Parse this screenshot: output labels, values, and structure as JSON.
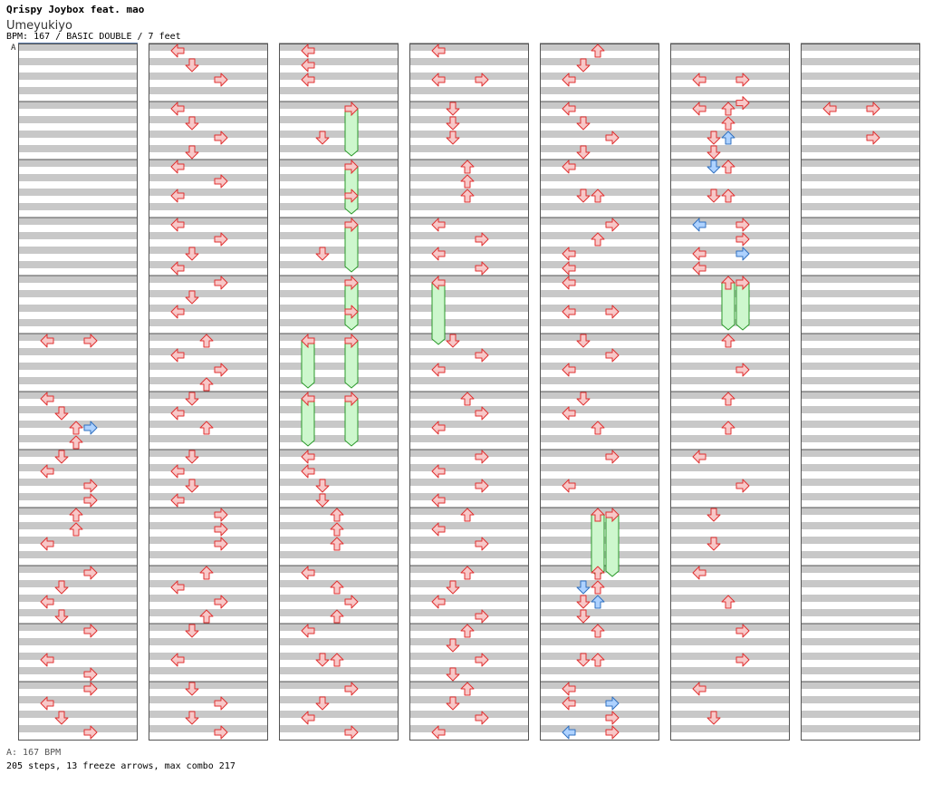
{
  "header": {
    "title": "Qrispy Joybox feat. mao",
    "song": "Umeyukiyo",
    "info": "BPM: 167 / BASIC DOUBLE / 7 feet",
    "marker": "A"
  },
  "footer": {
    "bpm_note": "A: 167 BPM",
    "summary": "205 steps, 13 freeze arrows, max combo 217"
  },
  "chart_data": {
    "type": "step-chart",
    "panels": [
      "left",
      "down",
      "up",
      "right"
    ],
    "columns": 7,
    "measures_per_column": 12,
    "colors": {
      "note": "#f7c8c8",
      "note_edge": "#e03030",
      "shock": "#aed2ff",
      "shock_edge": "#3070c0",
      "freeze": "#cdf7cd",
      "freeze_edge": "#2a9a2a",
      "stripe": "#c8c8c8"
    },
    "notes": [
      [
        6,
        0,
        1,
        "left"
      ],
      [
        6,
        1,
        0,
        "right"
      ],
      [
        6,
        1,
        0.5,
        "right"
      ],
      [
        5,
        0,
        1,
        "left"
      ],
      [
        5,
        0,
        0.5,
        "left"
      ],
      [
        5,
        0,
        0.5,
        "right"
      ],
      [
        5,
        0,
        0.9,
        "right"
      ],
      [
        5,
        1,
        1,
        "down",
        "shock"
      ],
      [
        5,
        1,
        0.5,
        "down"
      ],
      [
        5,
        1,
        0.5,
        "up",
        "shock"
      ],
      [
        5,
        1,
        0,
        "up"
      ],
      [
        5,
        1,
        0.25,
        "up"
      ],
      [
        5,
        1,
        0.75,
        "down"
      ],
      [
        5,
        2,
        0,
        "up"
      ],
      [
        5,
        2,
        0.5,
        "down"
      ],
      [
        5,
        2,
        0.5,
        "up"
      ],
      [
        5,
        3,
        0,
        "right"
      ],
      [
        5,
        3,
        0.25,
        "right"
      ],
      [
        5,
        3,
        0.5,
        "right",
        "shock"
      ],
      [
        5,
        3,
        0.5,
        "left"
      ],
      [
        5,
        3,
        0,
        "left",
        "shock"
      ],
      [
        5,
        3,
        0.75,
        "left"
      ],
      [
        5,
        5,
        0,
        "up"
      ],
      [
        5,
        5,
        0.5,
        "right"
      ],
      [
        5,
        6,
        0,
        "up"
      ],
      [
        5,
        6,
        0.5,
        "up"
      ],
      [
        5,
        7,
        0,
        "left"
      ],
      [
        5,
        7,
        0.5,
        "right"
      ],
      [
        5,
        8,
        0,
        "down"
      ],
      [
        5,
        8,
        0.5,
        "down"
      ],
      [
        5,
        9,
        0,
        "left"
      ],
      [
        5,
        9,
        0.5,
        "up"
      ],
      [
        5,
        10,
        0,
        "right"
      ],
      [
        5,
        10,
        0.5,
        "right"
      ],
      [
        5,
        11,
        0,
        "left"
      ],
      [
        5,
        11,
        0.5,
        "down"
      ],
      [
        4,
        0,
        0,
        "up"
      ],
      [
        4,
        0,
        0.25,
        "down"
      ],
      [
        4,
        0,
        0.5,
        "left"
      ],
      [
        4,
        1,
        0,
        "left"
      ],
      [
        4,
        1,
        0.25,
        "down"
      ],
      [
        4,
        1,
        0.5,
        "right"
      ],
      [
        4,
        1,
        0.75,
        "down"
      ],
      [
        4,
        2,
        0,
        "left"
      ],
      [
        4,
        2,
        0.5,
        "down"
      ],
      [
        4,
        2,
        0.5,
        "up"
      ],
      [
        4,
        3,
        0,
        "right"
      ],
      [
        4,
        3,
        0.25,
        "up"
      ],
      [
        4,
        3,
        0.5,
        "left"
      ],
      [
        4,
        3,
        0.75,
        "left"
      ],
      [
        4,
        4,
        0,
        "left"
      ],
      [
        4,
        4,
        0.5,
        "left"
      ],
      [
        4,
        4,
        0.5,
        "right"
      ],
      [
        4,
        5,
        0,
        "down"
      ],
      [
        4,
        5,
        0.25,
        "right"
      ],
      [
        4,
        5,
        0.5,
        "left"
      ],
      [
        4,
        6,
        0,
        "down"
      ],
      [
        4,
        6,
        0.25,
        "left"
      ],
      [
        4,
        6,
        0.5,
        "up"
      ],
      [
        4,
        7,
        0,
        "right"
      ],
      [
        4,
        7,
        0.5,
        "left"
      ],
      [
        4,
        9,
        0,
        "up"
      ],
      [
        4,
        9,
        0.25,
        "down",
        "shock"
      ],
      [
        4,
        9,
        0.25,
        "up"
      ],
      [
        4,
        9,
        0.5,
        "down"
      ],
      [
        4,
        9,
        0.5,
        "up",
        "shock"
      ],
      [
        4,
        9,
        0.75,
        "down"
      ],
      [
        4,
        10,
        0,
        "up"
      ],
      [
        4,
        10,
        0.5,
        "down"
      ],
      [
        4,
        10,
        0.5,
        "up"
      ],
      [
        4,
        11,
        0,
        "left"
      ],
      [
        4,
        11,
        0.25,
        "right",
        "shock"
      ],
      [
        4,
        11,
        0.25,
        "left"
      ],
      [
        4,
        11,
        0.5,
        "right"
      ],
      [
        4,
        11,
        0.75,
        "right"
      ],
      [
        4,
        11,
        0.75,
        "left",
        "shock"
      ],
      [
        3,
        0,
        0,
        "left"
      ],
      [
        3,
        0,
        0.5,
        "right"
      ],
      [
        3,
        0,
        0.5,
        "left"
      ],
      [
        3,
        1,
        0,
        "down"
      ],
      [
        3,
        1,
        0.25,
        "down"
      ],
      [
        3,
        1,
        0.5,
        "down"
      ],
      [
        3,
        2,
        0,
        "up"
      ],
      [
        3,
        2,
        0.25,
        "up"
      ],
      [
        3,
        2,
        0.5,
        "up"
      ],
      [
        3,
        3,
        0,
        "left"
      ],
      [
        3,
        3,
        0.25,
        "right"
      ],
      [
        3,
        3,
        0.5,
        "left"
      ],
      [
        3,
        3,
        0.75,
        "right"
      ],
      [
        3,
        5,
        0,
        "down"
      ],
      [
        3,
        5,
        0.25,
        "right"
      ],
      [
        3,
        5,
        0.5,
        "left"
      ],
      [
        3,
        6,
        0,
        "up"
      ],
      [
        3,
        6,
        0.25,
        "right"
      ],
      [
        3,
        6,
        0.5,
        "left"
      ],
      [
        3,
        7,
        0,
        "right"
      ],
      [
        3,
        7,
        0.25,
        "left"
      ],
      [
        3,
        7,
        0.5,
        "right"
      ],
      [
        3,
        7,
        0.75,
        "left"
      ],
      [
        3,
        8,
        0,
        "up"
      ],
      [
        3,
        8,
        0.25,
        "left"
      ],
      [
        3,
        8,
        0.5,
        "right"
      ],
      [
        3,
        9,
        0,
        "up"
      ],
      [
        3,
        9,
        0.25,
        "down"
      ],
      [
        3,
        9,
        0.5,
        "left"
      ],
      [
        3,
        9,
        0.75,
        "right"
      ],
      [
        3,
        10,
        0,
        "up"
      ],
      [
        3,
        10,
        0.25,
        "down"
      ],
      [
        3,
        10,
        0.5,
        "right"
      ],
      [
        3,
        10,
        0.75,
        "down"
      ],
      [
        3,
        11,
        0,
        "up"
      ],
      [
        3,
        11,
        0.25,
        "down"
      ],
      [
        3,
        11,
        0.5,
        "right"
      ],
      [
        3,
        11,
        0.75,
        "left"
      ],
      [
        2,
        0,
        0,
        "left"
      ],
      [
        2,
        0,
        0.25,
        "left"
      ],
      [
        2,
        0,
        0.5,
        "left"
      ],
      [
        2,
        1,
        0.5,
        "down"
      ],
      [
        2,
        2,
        0.5,
        "right"
      ],
      [
        2,
        3,
        0.5,
        "down"
      ],
      [
        2,
        4,
        0.5,
        "right"
      ],
      [
        2,
        7,
        0,
        "left"
      ],
      [
        2,
        7,
        0.25,
        "left"
      ],
      [
        2,
        7,
        0.5,
        "down"
      ],
      [
        2,
        7,
        0.75,
        "down"
      ],
      [
        2,
        8,
        0,
        "up"
      ],
      [
        2,
        8,
        0.25,
        "up"
      ],
      [
        2,
        8,
        0.5,
        "up"
      ],
      [
        2,
        9,
        0,
        "left"
      ],
      [
        2,
        9,
        0.25,
        "up"
      ],
      [
        2,
        9,
        0.5,
        "right"
      ],
      [
        2,
        9,
        0.75,
        "up"
      ],
      [
        2,
        10,
        0,
        "left"
      ],
      [
        2,
        10,
        0.5,
        "down"
      ],
      [
        2,
        10,
        0.5,
        "up"
      ],
      [
        2,
        11,
        0,
        "right"
      ],
      [
        2,
        11,
        0.25,
        "down"
      ],
      [
        2,
        11,
        0.5,
        "left"
      ],
      [
        2,
        11,
        0.75,
        "right"
      ],
      [
        1,
        0,
        0,
        "left"
      ],
      [
        1,
        0,
        0.25,
        "down"
      ],
      [
        1,
        0,
        0.5,
        "right"
      ],
      [
        1,
        1,
        0,
        "left"
      ],
      [
        1,
        1,
        0.25,
        "down"
      ],
      [
        1,
        1,
        0.5,
        "right"
      ],
      [
        1,
        1,
        0.75,
        "down"
      ],
      [
        1,
        2,
        0,
        "left"
      ],
      [
        1,
        2,
        0.25,
        "right"
      ],
      [
        1,
        2,
        0.5,
        "left"
      ],
      [
        1,
        3,
        0,
        "left"
      ],
      [
        1,
        3,
        0.25,
        "right"
      ],
      [
        1,
        3,
        0.5,
        "down"
      ],
      [
        1,
        3,
        0.75,
        "left"
      ],
      [
        1,
        4,
        0,
        "right"
      ],
      [
        1,
        4,
        0.25,
        "down"
      ],
      [
        1,
        4,
        0.5,
        "left"
      ],
      [
        1,
        5,
        0,
        "up"
      ],
      [
        1,
        5,
        0.25,
        "left"
      ],
      [
        1,
        5,
        0.5,
        "right"
      ],
      [
        1,
        5,
        0.75,
        "up"
      ],
      [
        1,
        6,
        0,
        "down"
      ],
      [
        1,
        6,
        0.25,
        "left"
      ],
      [
        1,
        6,
        0.5,
        "up"
      ],
      [
        1,
        7,
        0,
        "down"
      ],
      [
        1,
        7,
        0.25,
        "left"
      ],
      [
        1,
        7,
        0.5,
        "down"
      ],
      [
        1,
        7,
        0.75,
        "left"
      ],
      [
        1,
        8,
        0,
        "right"
      ],
      [
        1,
        8,
        0.25,
        "right"
      ],
      [
        1,
        8,
        0.5,
        "right"
      ],
      [
        1,
        9,
        0,
        "up"
      ],
      [
        1,
        9,
        0.25,
        "left"
      ],
      [
        1,
        9,
        0.5,
        "right"
      ],
      [
        1,
        9,
        0.75,
        "up"
      ],
      [
        1,
        10,
        0,
        "down"
      ],
      [
        1,
        10,
        0.5,
        "left"
      ],
      [
        1,
        11,
        0,
        "down"
      ],
      [
        1,
        11,
        0.25,
        "right"
      ],
      [
        1,
        11,
        0.5,
        "down"
      ],
      [
        1,
        11,
        0.75,
        "right"
      ],
      [
        0,
        5,
        0,
        "left"
      ],
      [
        0,
        5,
        0,
        "right"
      ],
      [
        0,
        6,
        0,
        "left"
      ],
      [
        0,
        6,
        0.25,
        "down"
      ],
      [
        0,
        6,
        0.5,
        "up"
      ],
      [
        0,
        6,
        0.5,
        "right",
        "shock"
      ],
      [
        0,
        6,
        0.75,
        "up"
      ],
      [
        0,
        7,
        0,
        "down"
      ],
      [
        0,
        7,
        0.25,
        "left"
      ],
      [
        0,
        7,
        0.5,
        "right"
      ],
      [
        0,
        7,
        0.75,
        "right"
      ],
      [
        0,
        8,
        0,
        "up"
      ],
      [
        0,
        8,
        0.25,
        "up"
      ],
      [
        0,
        8,
        0.5,
        "left"
      ],
      [
        0,
        9,
        0,
        "right"
      ],
      [
        0,
        9,
        0.25,
        "down"
      ],
      [
        0,
        9,
        0.5,
        "left"
      ],
      [
        0,
        9,
        0.75,
        "down"
      ],
      [
        0,
        10,
        0,
        "right"
      ],
      [
        0,
        10,
        0.5,
        "left"
      ],
      [
        0,
        10,
        0.75,
        "right"
      ],
      [
        0,
        11,
        0,
        "right"
      ],
      [
        0,
        11,
        0.25,
        "left"
      ],
      [
        0,
        11,
        0.5,
        "down"
      ],
      [
        0,
        11,
        0.75,
        "right"
      ]
    ],
    "freezes": [
      [
        2,
        1,
        0,
        0.75,
        "right"
      ],
      [
        2,
        2,
        0,
        0.75,
        "right"
      ],
      [
        2,
        3,
        0,
        0.75,
        "right"
      ],
      [
        2,
        4,
        0,
        0.75,
        "right"
      ],
      [
        3,
        4,
        0,
        1,
        "left"
      ],
      [
        2,
        5,
        0,
        0.75,
        "left"
      ],
      [
        2,
        5,
        0,
        0.75,
        "right"
      ],
      [
        2,
        6,
        0,
        0.75,
        "left"
      ],
      [
        2,
        6,
        0,
        0.75,
        "right"
      ],
      [
        4,
        8,
        0,
        1,
        "up"
      ],
      [
        4,
        8,
        0,
        1,
        "right"
      ],
      [
        5,
        4,
        0,
        0.75,
        "up"
      ],
      [
        5,
        4,
        0,
        0.75,
        "right"
      ]
    ]
  }
}
